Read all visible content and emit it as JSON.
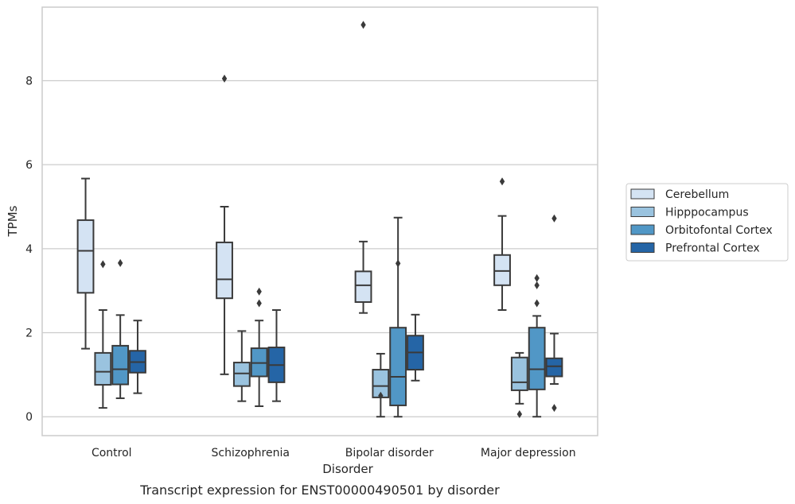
{
  "chart_data": {
    "type": "box",
    "caption": "Transcript expression for ENST00000490501 by disorder",
    "xlabel": "Disorder",
    "ylabel": "TPMs",
    "categories": [
      "Control",
      "Schizophrenia",
      "Bipolar disorder",
      "Major depression"
    ],
    "ylim": [
      -0.45,
      9.75
    ],
    "yticks": [
      0,
      2,
      4,
      6,
      8
    ],
    "grid": true,
    "legend_position": "right",
    "series": [
      {
        "name": "Cerebellum",
        "color": "#d4e3f3",
        "boxes": [
          {
            "whisker_low": 1.62,
            "q1": 2.95,
            "median": 3.95,
            "q3": 4.68,
            "whisker_high": 5.67,
            "outliers": []
          },
          {
            "whisker_low": 1.01,
            "q1": 2.82,
            "median": 3.27,
            "q3": 4.15,
            "whisker_high": 5.0,
            "outliers": [
              8.05
            ]
          },
          {
            "whisker_low": 2.47,
            "q1": 2.73,
            "median": 3.13,
            "q3": 3.46,
            "whisker_high": 4.17,
            "outliers": [
              9.33
            ]
          },
          {
            "whisker_low": 2.54,
            "q1": 3.13,
            "median": 3.47,
            "q3": 3.85,
            "whisker_high": 4.78,
            "outliers": [
              5.6
            ]
          }
        ]
      },
      {
        "name": "Hipppocampus",
        "color": "#9ac3df",
        "boxes": [
          {
            "whisker_low": 0.21,
            "q1": 0.76,
            "median": 1.07,
            "q3": 1.52,
            "whisker_high": 2.54,
            "outliers": [
              3.63
            ]
          },
          {
            "whisker_low": 0.37,
            "q1": 0.73,
            "median": 1.03,
            "q3": 1.29,
            "whisker_high": 2.04,
            "outliers": []
          },
          {
            "whisker_low": 0.0,
            "q1": 0.46,
            "median": 0.73,
            "q3": 1.12,
            "whisker_high": 1.5,
            "outliers": [
              0.5
            ]
          },
          {
            "whisker_low": 0.31,
            "q1": 0.63,
            "median": 0.82,
            "q3": 1.41,
            "whisker_high": 1.52,
            "outliers": [
              0.06
            ]
          }
        ]
      },
      {
        "name": "Orbitofontal Cortex",
        "color": "#5197c6",
        "boxes": [
          {
            "whisker_low": 0.44,
            "q1": 0.77,
            "median": 1.13,
            "q3": 1.69,
            "whisker_high": 2.42,
            "outliers": [
              3.66
            ]
          },
          {
            "whisker_low": 0.25,
            "q1": 0.96,
            "median": 1.28,
            "q3": 1.63,
            "whisker_high": 2.29,
            "outliers": [
              2.7,
              2.98
            ]
          },
          {
            "whisker_low": 0.0,
            "q1": 0.27,
            "median": 0.95,
            "q3": 2.12,
            "whisker_high": 4.74,
            "outliers": [
              3.65
            ]
          },
          {
            "whisker_low": 0.0,
            "q1": 0.65,
            "median": 1.13,
            "q3": 2.12,
            "whisker_high": 2.4,
            "outliers": [
              2.7,
              3.13,
              3.3
            ]
          }
        ]
      },
      {
        "name": "Prefrontal Cortex",
        "color": "#2565a6",
        "boxes": [
          {
            "whisker_low": 0.56,
            "q1": 1.05,
            "median": 1.3,
            "q3": 1.57,
            "whisker_high": 2.29,
            "outliers": []
          },
          {
            "whisker_low": 0.37,
            "q1": 0.82,
            "median": 1.23,
            "q3": 1.65,
            "whisker_high": 2.54,
            "outliers": []
          },
          {
            "whisker_low": 0.86,
            "q1": 1.12,
            "median": 1.53,
            "q3": 1.93,
            "whisker_high": 2.43,
            "outliers": []
          },
          {
            "whisker_low": 0.78,
            "q1": 0.96,
            "median": 1.2,
            "q3": 1.39,
            "whisker_high": 1.98,
            "outliers": [
              0.21,
              4.72
            ]
          }
        ]
      }
    ]
  }
}
